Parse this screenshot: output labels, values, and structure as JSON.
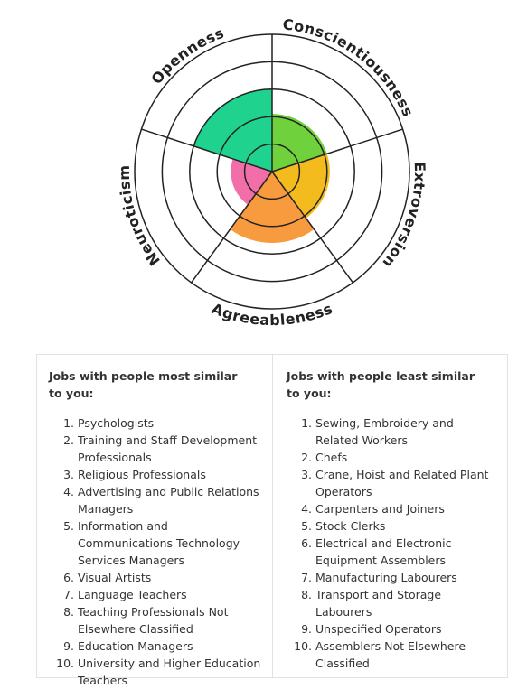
{
  "chart_data": {
    "type": "polar-area",
    "categories": [
      "Conscientiousness",
      "Extroversion",
      "Agreeableness",
      "Neuroticism",
      "Openness"
    ],
    "values": [
      2.1,
      2.1,
      2.6,
      1.5,
      3.0
    ],
    "colors": [
      "#6fd13c",
      "#f3bb1e",
      "#f89a3e",
      "#f26ea8",
      "#1fd38f"
    ],
    "rlim": [
      0,
      5
    ],
    "rticks": [
      1,
      2,
      3,
      4,
      5
    ],
    "grid": true
  },
  "lists": [
    {
      "heading": "Jobs with people most similar to you:",
      "items": [
        "Psychologists",
        "Training and Staff Development Professionals",
        "Religious Professionals",
        "Advertising and Public Relations Managers",
        "Information and Communications Technology Services Managers",
        "Visual Artists",
        "Language Teachers",
        "Teaching Professionals Not Elsewhere Classified",
        "Education Managers",
        "University and Higher Education Teachers"
      ]
    },
    {
      "heading": "Jobs with people least similar to you:",
      "items": [
        "Sewing, Embroidery and Related Workers",
        "Chefs",
        "Crane, Hoist and Related Plant Operators",
        "Carpenters and Joiners",
        "Stock Clerks",
        "Electrical and Electronic Equipment Assemblers",
        "Manufacturing Labourers",
        "Transport and Storage Labourers",
        "Unspecified Operators",
        "Assemblers Not Elsewhere Classified"
      ]
    }
  ]
}
